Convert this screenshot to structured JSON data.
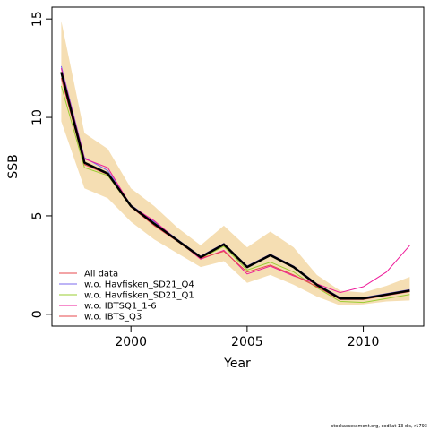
{
  "chart_data": {
    "type": "line",
    "xlabel": "Year",
    "ylabel": "SSB",
    "xlim": [
      1996.6,
      2012.6
    ],
    "ylim": [
      -0.6,
      15.6
    ],
    "xticks": [
      2000,
      2005,
      2010
    ],
    "yticks": [
      0,
      5,
      10,
      15
    ],
    "legend_position": "bottom-left",
    "x": [
      1997,
      1998,
      1999,
      2000,
      2001,
      2002,
      2003,
      2004,
      2005,
      2006,
      2007,
      2008,
      2009,
      2010,
      2011,
      2012
    ],
    "confidence_band": {
      "color": "#F5DEB3",
      "lower": [
        9.8,
        6.4,
        5.9,
        4.7,
        3.8,
        3.1,
        2.4,
        2.7,
        1.6,
        2.0,
        1.5,
        0.9,
        0.45,
        0.5,
        0.65,
        0.7
      ],
      "upper": [
        14.9,
        9.2,
        8.4,
        6.4,
        5.5,
        4.4,
        3.5,
        4.5,
        3.4,
        4.2,
        3.4,
        2.0,
        1.2,
        1.1,
        1.45,
        1.9
      ]
    },
    "main_line": {
      "color": "#000000",
      "values": [
        12.3,
        7.7,
        7.15,
        5.5,
        4.6,
        3.75,
        2.9,
        3.55,
        2.4,
        3.0,
        2.4,
        1.5,
        0.8,
        0.8,
        1.0,
        1.2
      ]
    },
    "series": [
      {
        "name": "All data",
        "color": "#E7484C",
        "values": [
          12.3,
          7.7,
          7.15,
          5.5,
          4.6,
          3.75,
          2.9,
          3.55,
          2.4,
          3.0,
          2.4,
          1.5,
          0.8,
          0.8,
          1.0,
          1.2
        ]
      },
      {
        "name": "w.o. Havfisken_SD21_Q4",
        "color": "#7B68EE",
        "values": [
          12.6,
          7.95,
          7.3,
          5.55,
          4.7,
          3.8,
          2.95,
          3.6,
          2.45,
          3.05,
          2.45,
          1.55,
          0.85,
          0.85,
          1.05,
          1.25
        ]
      },
      {
        "name": "w.o. Havfisken_SD21_Q1",
        "color": "#9ACD32",
        "values": [
          11.6,
          7.45,
          7.05,
          5.45,
          4.55,
          3.7,
          2.85,
          3.45,
          2.25,
          2.65,
          2.15,
          1.35,
          0.65,
          0.6,
          0.8,
          1.0
        ]
      },
      {
        "name": "w.o. IBTSQ1_1-6",
        "color": "#EE1B9A",
        "values": [
          12.5,
          7.9,
          7.45,
          5.5,
          4.75,
          3.75,
          2.8,
          3.25,
          2.05,
          2.45,
          1.95,
          1.55,
          1.1,
          1.4,
          2.15,
          3.5
        ]
      },
      {
        "name": "w.o. IBTS_Q3",
        "color": "#E7484C",
        "values": [
          12.0,
          7.6,
          7.1,
          5.45,
          4.5,
          3.7,
          2.85,
          3.2,
          2.15,
          2.5,
          2.0,
          1.4,
          0.75,
          0.75,
          0.95,
          1.15
        ]
      }
    ]
  },
  "footnote": "stockassessment.org, codkat 13 dis, r1793"
}
